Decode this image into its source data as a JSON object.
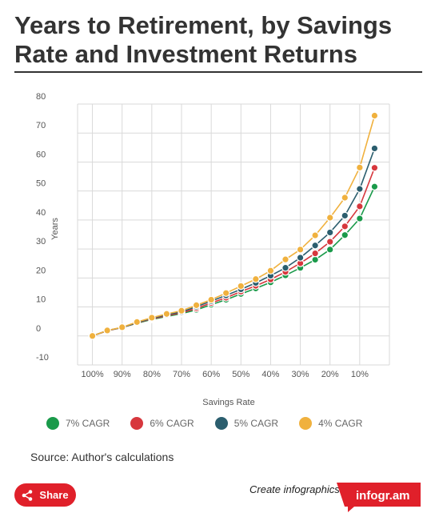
{
  "header": {
    "title": "Years to Retirement, by Savings Rate and Investment Returns"
  },
  "chart_data": {
    "type": "line",
    "title": "Years to Retirement, by Savings Rate and Investment Returns",
    "xlabel": "Savings Rate",
    "ylabel": "Years",
    "ylim": [
      -10,
      80
    ],
    "yticks": [
      "80",
      "70",
      "60",
      "50",
      "40",
      "30",
      "20",
      "10",
      "0",
      "-10"
    ],
    "yticks_values": [
      80,
      70,
      60,
      50,
      40,
      30,
      20,
      10,
      0,
      -10
    ],
    "x_tick_labels": [
      "100%",
      "90%",
      "80%",
      "70%",
      "60%",
      "50%",
      "40%",
      "30%",
      "20%",
      "10%"
    ],
    "x_tick_values": [
      100,
      90,
      80,
      70,
      60,
      50,
      40,
      30,
      20,
      10
    ],
    "x": [
      100,
      95,
      90,
      85,
      80,
      75,
      70,
      65,
      60,
      55,
      50,
      45,
      40,
      35,
      30,
      25,
      20,
      15,
      10,
      5
    ],
    "grid": true,
    "legend_position": "bottom",
    "series": [
      {
        "name": "7% CAGR",
        "color": "#1a9a4a",
        "values": [
          0,
          1.8,
          2.9,
          4.4,
          5.7,
          6.7,
          7.7,
          9,
          10.8,
          12.5,
          14.5,
          16.4,
          18.5,
          20.9,
          23.5,
          26.3,
          29.8,
          34.8,
          40.5,
          51.5
        ]
      },
      {
        "name": "6% CAGR",
        "color": "#d7373d",
        "values": [
          0,
          1.8,
          2.9,
          4.5,
          5.9,
          7,
          8,
          9.5,
          11.4,
          13.2,
          15.3,
          17.3,
          19.5,
          22.1,
          25.1,
          28.5,
          32.5,
          37.8,
          44.7,
          58
        ]
      },
      {
        "name": "5% CAGR",
        "color": "#2b5e6e",
        "values": [
          0,
          1.9,
          2.9,
          4.6,
          6.1,
          7.3,
          8.3,
          10.1,
          12,
          14,
          16.1,
          18.3,
          20.8,
          23.5,
          27,
          31.2,
          35.7,
          41.5,
          50.7,
          64.7
        ]
      },
      {
        "name": "4% CAGR",
        "color": "#f0b13e",
        "values": [
          0,
          1.9,
          3,
          4.8,
          6.3,
          7.6,
          8.7,
          10.6,
          12.5,
          14.8,
          17.2,
          19.6,
          22.5,
          26.4,
          29.8,
          34.7,
          40.8,
          47.7,
          58.1,
          76
        ]
      }
    ]
  },
  "legend": {
    "items": [
      {
        "label": "7% CAGR",
        "color": "#1a9a4a"
      },
      {
        "label": "6% CAGR",
        "color": "#d7373d"
      },
      {
        "label": "5% CAGR",
        "color": "#2b5e6e"
      },
      {
        "label": "4% CAGR",
        "color": "#f0b13e"
      }
    ]
  },
  "footer": {
    "source": "Source: Author's calculations",
    "share_label": "Share",
    "create_text": "Create infographics",
    "brand": "infogr.am",
    "accent_color": "#e0202a"
  }
}
